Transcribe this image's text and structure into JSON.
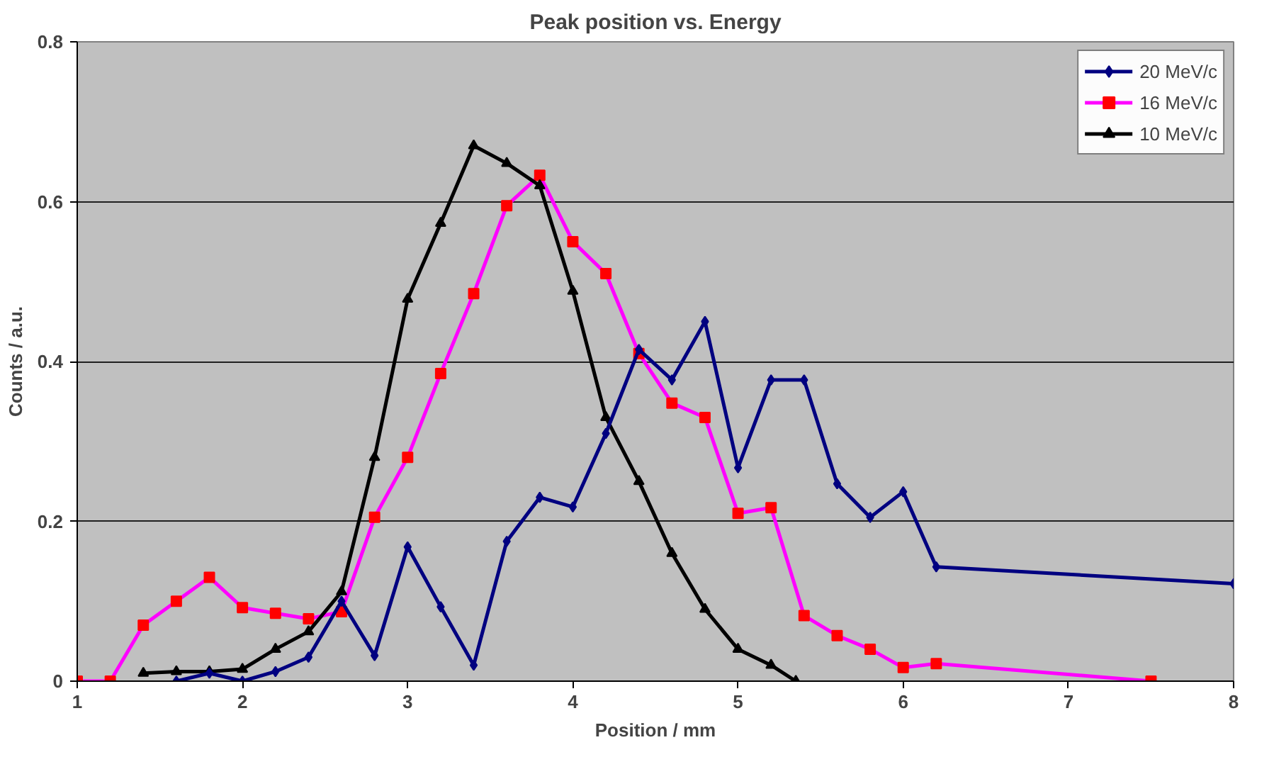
{
  "chart_data": {
    "type": "line",
    "title": "Peak position vs. Energy",
    "xlabel": "Position / mm",
    "ylabel": "Counts / a.u.",
    "xlim": [
      1,
      8
    ],
    "xticks": [
      1,
      2,
      3,
      4,
      5,
      6,
      7,
      8
    ],
    "ylim": [
      0,
      0.8
    ],
    "yticks": [
      0,
      0.2,
      0.4,
      0.6,
      0.8
    ],
    "grid": "y",
    "legend": "top right",
    "series": [
      {
        "name": "20 MeV/c",
        "color": "#000080",
        "marker": "diamond",
        "x": [
          1.6,
          1.8,
          2.0,
          2.2,
          2.4,
          2.6,
          2.8,
          3.0,
          3.2,
          3.4,
          3.6,
          3.8,
          4.0,
          4.2,
          4.4,
          4.6,
          4.8,
          5.0,
          5.2,
          5.4,
          5.6,
          5.8,
          6.0,
          6.2,
          8.0
        ],
        "values": [
          0.0,
          0.01,
          0.0,
          0.012,
          0.03,
          0.1,
          0.032,
          0.168,
          0.093,
          0.02,
          0.175,
          0.23,
          0.218,
          0.31,
          0.415,
          0.377,
          0.45,
          0.267,
          0.377,
          0.377,
          0.247,
          0.205,
          0.237,
          0.143,
          0.122
        ]
      },
      {
        "name": "16 MeV/c",
        "color": "#ff00ff",
        "marker": "square",
        "x": [
          1.0,
          1.2,
          1.4,
          1.6,
          1.8,
          2.0,
          2.2,
          2.4,
          2.6,
          2.8,
          3.0,
          3.2,
          3.4,
          3.6,
          3.8,
          4.0,
          4.2,
          4.4,
          4.6,
          4.8,
          5.0,
          5.2,
          5.4,
          5.6,
          5.8,
          6.0,
          6.2,
          7.5
        ],
        "values": [
          0.0,
          0.0,
          0.07,
          0.1,
          0.13,
          0.092,
          0.085,
          0.078,
          0.087,
          0.205,
          0.28,
          0.385,
          0.485,
          0.595,
          0.633,
          0.55,
          0.51,
          0.41,
          0.348,
          0.33,
          0.21,
          0.217,
          0.082,
          0.057,
          0.04,
          0.017,
          0.022,
          0.0
        ]
      },
      {
        "name": "10 MeV/c",
        "color": "#000000",
        "marker": "triangle",
        "x": [
          1.4,
          1.6,
          1.8,
          2.0,
          2.2,
          2.4,
          2.6,
          2.8,
          3.0,
          3.2,
          3.4,
          3.6,
          3.8,
          4.0,
          4.2,
          4.4,
          4.6,
          4.8,
          5.0,
          5.2,
          5.35
        ],
        "values": [
          0.01,
          0.012,
          0.012,
          0.015,
          0.04,
          0.062,
          0.112,
          0.28,
          0.478,
          0.573,
          0.67,
          0.648,
          0.62,
          0.488,
          0.33,
          0.25,
          0.16,
          0.09,
          0.04,
          0.02,
          0.0
        ]
      }
    ]
  }
}
